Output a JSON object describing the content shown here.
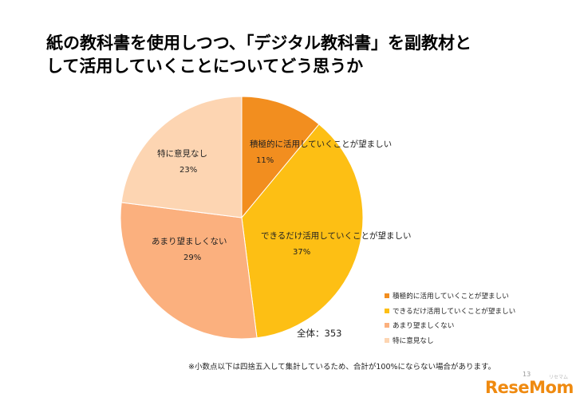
{
  "title_lines": [
    "紙の教科書を使用しつつ、「デジタル教科書」を副教材と",
    "して活用していくことについてどう思うか"
  ],
  "chart_data": {
    "type": "pie",
    "start": "12 o'clock, clockwise",
    "slices": [
      {
        "label": "積極的に活用していくことが望ましい",
        "value": 11,
        "value_label": "11%",
        "color": "#f28e1f"
      },
      {
        "label": "できるだけ活用していくことが望ましい",
        "value": 37,
        "value_label": "37%",
        "color": "#fdbf14"
      },
      {
        "label": "あまり望ましくない",
        "value": 29,
        "value_label": "29%",
        "color": "#fbb07e"
      },
      {
        "label": "特に意見なし",
        "value": 23,
        "value_label": "23%",
        "color": "#fdd5b2"
      }
    ],
    "legend_position": "bottom-right"
  },
  "total_label": "全体：353",
  "footnote": "※小数点以下は四捨五入して集計しているため、合計が100%にならない場合があります。",
  "page_number": "13",
  "logo": {
    "text": "ReseMom",
    "kana": "リセマム",
    "color": "#ef8a10"
  }
}
